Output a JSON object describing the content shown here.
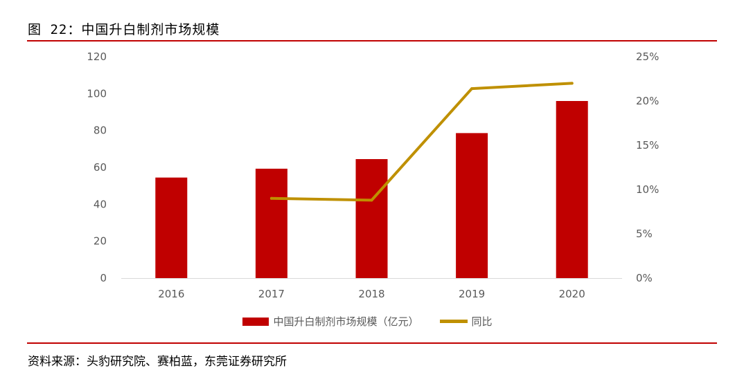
{
  "figure": {
    "title": "图 22：中国升白制剂市场规模",
    "source": "资料来源：头豹研究院、赛柏蓝，东莞证券研究所"
  },
  "colors": {
    "bar": "#c00000",
    "line": "#bf9000",
    "rule": "#c00000",
    "axis_text": "#595959"
  },
  "chart_data": {
    "type": "bar",
    "categories": [
      "2016",
      "2017",
      "2018",
      "2019",
      "2020"
    ],
    "series": [
      {
        "name": "中国升白制剂市场规模（亿元）",
        "type": "bar",
        "axis": "left",
        "values": [
          54.5,
          59.3,
          64.5,
          78.6,
          96.0
        ]
      },
      {
        "name": "同比",
        "type": "line",
        "axis": "right",
        "values": [
          null,
          9.0,
          8.8,
          21.4,
          22.0
        ]
      }
    ],
    "y_left": {
      "ylim": [
        0,
        120
      ],
      "ticks": [
        "0",
        "20",
        "40",
        "60",
        "80",
        "100",
        "120"
      ]
    },
    "y_right": {
      "ylim": [
        0,
        25
      ],
      "ticks": [
        "0%",
        "5%",
        "10%",
        "15%",
        "20%",
        "25%"
      ]
    },
    "grid": false,
    "legend": "bottom"
  }
}
